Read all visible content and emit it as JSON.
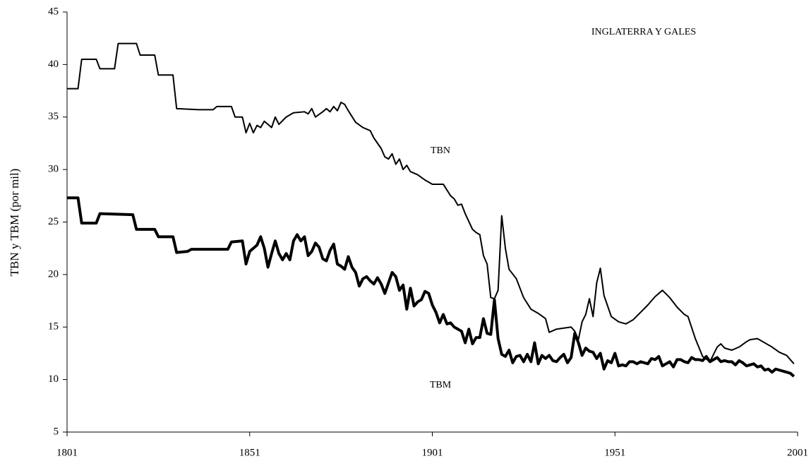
{
  "chart_data": {
    "type": "line",
    "ylabel": "TBN y TBM (por mil)",
    "annotations": [
      "INGLATERRA Y GALES",
      "TBN",
      "TBM"
    ],
    "xlim": [
      1801,
      2001
    ],
    "xticks": [
      1801,
      1851,
      1901,
      1951,
      2001
    ],
    "ylim": [
      5,
      45
    ],
    "yticks": [
      5,
      10,
      15,
      20,
      25,
      30,
      35,
      40,
      45
    ],
    "grid": false,
    "series": [
      {
        "name": "TBN",
        "color": "#000000",
        "line_width": 2,
        "x": [
          1801,
          1804,
          1805,
          1809,
          1810,
          1814,
          1815,
          1820,
          1821,
          1825,
          1826,
          1830,
          1831,
          1837,
          1841,
          1842,
          1846,
          1847,
          1849,
          1850,
          1851,
          1852,
          1853,
          1854,
          1855,
          1857,
          1858,
          1859,
          1861,
          1863,
          1866,
          1867,
          1868,
          1869,
          1871,
          1872,
          1873,
          1874,
          1875,
          1876,
          1877,
          1878,
          1880,
          1882,
          1884,
          1885,
          1887,
          1888,
          1889,
          1890,
          1891,
          1892,
          1893,
          1894,
          1895,
          1897,
          1899,
          1901,
          1904,
          1906,
          1907,
          1908,
          1909,
          1910,
          1912,
          1913,
          1914,
          1915,
          1916,
          1917,
          1918,
          1919,
          1920,
          1921,
          1922,
          1924,
          1926,
          1928,
          1930,
          1932,
          1933,
          1935,
          1937,
          1939,
          1940,
          1941,
          1942,
          1943,
          1944,
          1945,
          1946,
          1947,
          1948,
          1950,
          1952,
          1954,
          1956,
          1958,
          1960,
          1962,
          1964,
          1966,
          1968,
          1970,
          1971,
          1973,
          1975,
          1977,
          1979,
          1980,
          1981,
          1983,
          1985,
          1987,
          1988,
          1990,
          1992,
          1994,
          1996,
          1998,
          2000
        ],
        "values": [
          37.7,
          37.7,
          40.5,
          40.5,
          39.6,
          39.6,
          42,
          42,
          40.9,
          40.9,
          39,
          39,
          35.8,
          35.7,
          35.7,
          36,
          36,
          35,
          35,
          33.5,
          34.4,
          33.5,
          34.2,
          34,
          34.6,
          34,
          35,
          34.3,
          35,
          35.4,
          35.5,
          35.3,
          35.8,
          35,
          35.5,
          35.8,
          35.5,
          36,
          35.6,
          36.4,
          36.2,
          35.6,
          34.5,
          34,
          33.7,
          33,
          32,
          31.2,
          31,
          31.5,
          30.5,
          31,
          30,
          30.4,
          29.8,
          29.5,
          29,
          28.6,
          28.6,
          27.5,
          27.2,
          26.6,
          26.7,
          25.8,
          24.3,
          24,
          23.8,
          21.8,
          21,
          17.8,
          17.7,
          18.5,
          25.6,
          22.5,
          20.5,
          19.6,
          17.8,
          16.7,
          16.3,
          15.8,
          14.5,
          14.8,
          14.9,
          15,
          14.6,
          13.8,
          15.5,
          16.2,
          17.7,
          16,
          19.2,
          20.6,
          18,
          16,
          15.5,
          15.3,
          15.7,
          16.4,
          17.1,
          17.9,
          18.5,
          17.8,
          16.9,
          16.2,
          16,
          13.9,
          12.2,
          11.7,
          13.1,
          13.4,
          13,
          12.8,
          13.1,
          13.6,
          13.8,
          13.9,
          13.5,
          13.1,
          12.6,
          12.3,
          11.5
        ]
      },
      {
        "name": "TBM",
        "color": "#000000",
        "line_width": 4,
        "x": [
          1801,
          1804,
          1805,
          1809,
          1810,
          1819,
          1820,
          1825,
          1826,
          1830,
          1831,
          1834,
          1835,
          1845,
          1846,
          1849,
          1850,
          1851,
          1853,
          1854,
          1855,
          1856,
          1857,
          1858,
          1859,
          1860,
          1861,
          1862,
          1863,
          1864,
          1865,
          1866,
          1867,
          1868,
          1869,
          1870,
          1871,
          1872,
          1873,
          1874,
          1875,
          1876,
          1877,
          1878,
          1879,
          1880,
          1881,
          1882,
          1883,
          1884,
          1885,
          1886,
          1887,
          1888,
          1889,
          1890,
          1891,
          1892,
          1893,
          1894,
          1895,
          1896,
          1897,
          1898,
          1899,
          1900,
          1901,
          1902,
          1903,
          1904,
          1905,
          1906,
          1907,
          1908,
          1909,
          1910,
          1911,
          1912,
          1913,
          1914,
          1915,
          1916,
          1917,
          1918,
          1919,
          1920,
          1921,
          1922,
          1923,
          1924,
          1925,
          1926,
          1927,
          1928,
          1929,
          1930,
          1931,
          1932,
          1933,
          1934,
          1935,
          1936,
          1937,
          1938,
          1939,
          1940,
          1941,
          1942,
          1943,
          1944,
          1945,
          1946,
          1947,
          1948,
          1949,
          1950,
          1951,
          1952,
          1953,
          1954,
          1955,
          1956,
          1957,
          1958,
          1959,
          1960,
          1961,
          1962,
          1963,
          1964,
          1965,
          1966,
          1967,
          1968,
          1969,
          1970,
          1971,
          1972,
          1973,
          1974,
          1975,
          1976,
          1977,
          1978,
          1979,
          1980,
          1981,
          1982,
          1983,
          1984,
          1985,
          1986,
          1987,
          1988,
          1989,
          1990,
          1991,
          1992,
          1993,
          1994,
          1995,
          1996,
          1997,
          1998,
          1999,
          2000
        ],
        "values": [
          27.3,
          27.3,
          24.9,
          24.9,
          25.8,
          25.7,
          24.3,
          24.3,
          23.6,
          23.6,
          22.1,
          22.2,
          22.4,
          22.4,
          23.1,
          23.2,
          21,
          22.2,
          22.8,
          23.6,
          22.5,
          20.7,
          22,
          23.2,
          22,
          21.4,
          22,
          21.4,
          23.2,
          23.8,
          23.2,
          23.6,
          21.8,
          22.2,
          23,
          22.6,
          21.5,
          21.3,
          22.3,
          22.9,
          21,
          20.8,
          20.5,
          21.7,
          20.7,
          20.2,
          18.9,
          19.6,
          19.8,
          19.4,
          19.1,
          19.7,
          19.1,
          18.2,
          19.2,
          20.2,
          19.8,
          18.5,
          19,
          16.7,
          18.7,
          17,
          17.4,
          17.6,
          18.4,
          18.2,
          17.1,
          16.4,
          15.4,
          16.2,
          15.3,
          15.4,
          15,
          14.8,
          14.6,
          13.5,
          14.8,
          13.4,
          14,
          14,
          15.8,
          14.4,
          14.3,
          17.6,
          13.9,
          12.4,
          12.2,
          12.8,
          11.6,
          12.2,
          12.3,
          11.7,
          12.4,
          11.7,
          13.5,
          11.5,
          12.3,
          12,
          12.3,
          11.8,
          11.7,
          12.1,
          12.4,
          11.6,
          12.1,
          14.4,
          13.5,
          12.3,
          13,
          12.7,
          12.6,
          12,
          12.5,
          11,
          11.8,
          11.6,
          12.5,
          11.3,
          11.4,
          11.3,
          11.7,
          11.7,
          11.5,
          11.7,
          11.6,
          11.5,
          12,
          11.9,
          12.2,
          11.3,
          11.5,
          11.7,
          11.2,
          11.9,
          11.9,
          11.7,
          11.6,
          12.1,
          11.9,
          11.9,
          11.8,
          12.2,
          11.7,
          11.9,
          12.1,
          11.7,
          11.8,
          11.7,
          11.7,
          11.4,
          11.8,
          11.6,
          11.3,
          11.4,
          11.5,
          11.2,
          11.3,
          10.9,
          11,
          10.7,
          11,
          10.9,
          10.8,
          10.7,
          10.6,
          10.3
        ]
      }
    ]
  }
}
